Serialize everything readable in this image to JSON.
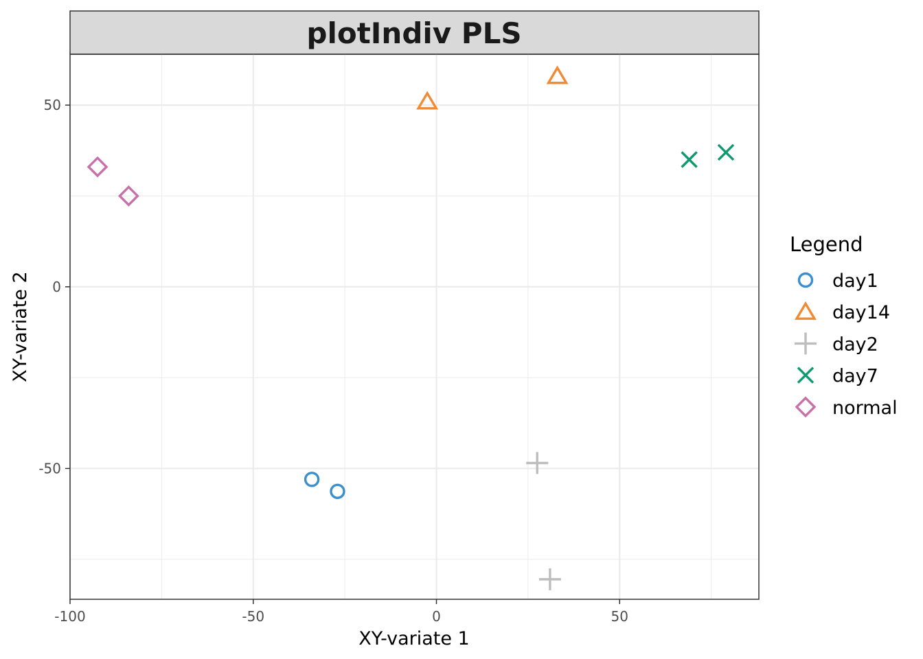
{
  "chart_data": {
    "type": "scatter",
    "title": "plotIndiv PLS",
    "xlabel": "XY-variate 1",
    "ylabel": "XY-variate 2",
    "xlim": [
      -100,
      88
    ],
    "ylim": [
      -86,
      64
    ],
    "x_ticks": [
      -100,
      -50,
      0,
      50
    ],
    "y_ticks": [
      -50,
      0,
      50
    ],
    "x_tick_labels": [
      "-100",
      "-50",
      "0",
      "50"
    ],
    "y_tick_labels": [
      "-50",
      "0",
      "50"
    ],
    "grid": true,
    "legend_title": "Legend",
    "legend_position": "right",
    "series": [
      {
        "name": "day1",
        "shape": "circle",
        "color": "#3a8fcc",
        "points": [
          [
            -34,
            -53
          ],
          [
            -27,
            -56.3
          ]
        ]
      },
      {
        "name": "day14",
        "shape": "triangle",
        "color": "#f08a35",
        "points": [
          [
            -2.5,
            51
          ],
          [
            33,
            58
          ]
        ]
      },
      {
        "name": "day2",
        "shape": "plus",
        "color": "#bdbdbd",
        "points": [
          [
            27.5,
            -48.5
          ],
          [
            31,
            -80.5
          ]
        ]
      },
      {
        "name": "day7",
        "shape": "cross",
        "color": "#0e9a6e",
        "points": [
          [
            69,
            35
          ],
          [
            79,
            37
          ]
        ]
      },
      {
        "name": "normal",
        "shape": "diamond",
        "color": "#c870a8",
        "points": [
          [
            -92.5,
            33
          ],
          [
            -84,
            25
          ]
        ]
      }
    ]
  }
}
